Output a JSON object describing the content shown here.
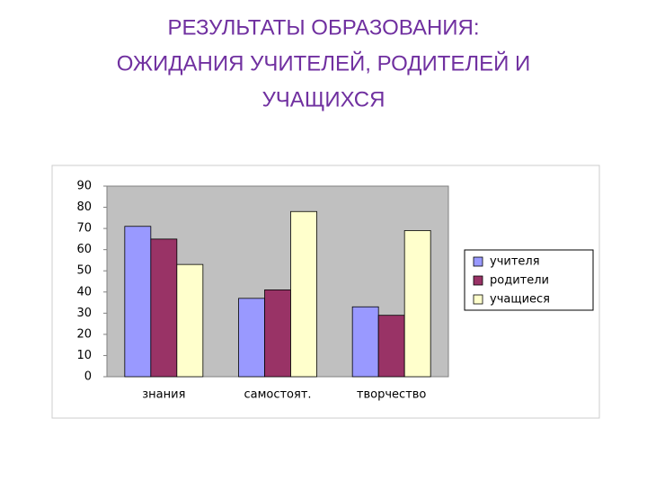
{
  "chart_data": {
    "type": "bar",
    "title": [
      "РЕЗУЛЬТАТЫ ОБРАЗОВАНИЯ:",
      "ОЖИДАНИЯ УЧИТЕЛЕЙ, РОДИТЕЛЕЙ И",
      "УЧАЩИХСЯ"
    ],
    "categories": [
      "знания",
      "самостоят.",
      "творчество"
    ],
    "series": [
      {
        "name": "учителя",
        "color": "#9999ff",
        "values": [
          71,
          37,
          33
        ]
      },
      {
        "name": "родители",
        "color": "#993366",
        "values": [
          65,
          41,
          29
        ]
      },
      {
        "name": "учащиеся",
        "color": "#ffffcc",
        "values": [
          53,
          78,
          69
        ]
      }
    ],
    "ylim": [
      0,
      90
    ],
    "yticks": [
      0,
      10,
      20,
      30,
      40,
      50,
      60,
      70,
      80,
      90
    ],
    "grid": false,
    "legend": "right"
  }
}
